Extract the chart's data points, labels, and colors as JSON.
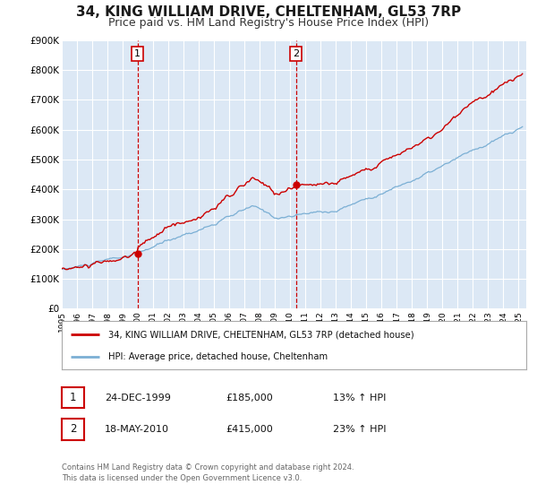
{
  "title": "34, KING WILLIAM DRIVE, CHELTENHAM, GL53 7RP",
  "subtitle": "Price paid vs. HM Land Registry's House Price Index (HPI)",
  "title_fontsize": 11,
  "subtitle_fontsize": 9,
  "background_color": "#ffffff",
  "plot_bg_color": "#dce8f5",
  "grid_color": "#ffffff",
  "red_line_color": "#cc0000",
  "blue_line_color": "#7bafd4",
  "sale1_year": 1999.98,
  "sale1_price": 185000,
  "sale1_label": "1",
  "sale1_date": "24-DEC-1999",
  "sale1_hpi_pct": "13%",
  "sale2_year": 2010.38,
  "sale2_price": 415000,
  "sale2_label": "2",
  "sale2_date": "18-MAY-2010",
  "sale2_hpi_pct": "23%",
  "ylim": [
    0,
    900000
  ],
  "xlim_start": 1995.0,
  "xlim_end": 2025.5,
  "yticks": [
    0,
    100000,
    200000,
    300000,
    400000,
    500000,
    600000,
    700000,
    800000,
    900000
  ],
  "ytick_labels": [
    "£0",
    "£100K",
    "£200K",
    "£300K",
    "£400K",
    "£500K",
    "£600K",
    "£700K",
    "£800K",
    "£900K"
  ],
  "legend_label_red": "34, KING WILLIAM DRIVE, CHELTENHAM, GL53 7RP (detached house)",
  "legend_label_blue": "HPI: Average price, detached house, Cheltenham",
  "footer_line1": "Contains HM Land Registry data © Crown copyright and database right 2024.",
  "footer_line2": "This data is licensed under the Open Government Licence v3.0."
}
